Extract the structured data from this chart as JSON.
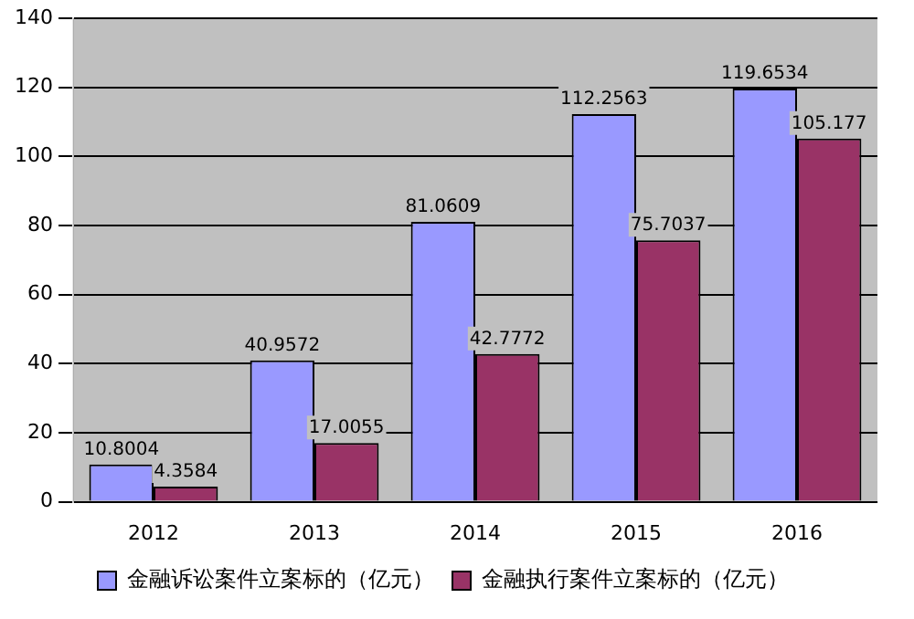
{
  "chart_data": {
    "type": "bar",
    "categories": [
      "2012",
      "2013",
      "2014",
      "2015",
      "2016"
    ],
    "series": [
      {
        "name": "金融诉讼案件立案标的（亿元）",
        "color": "#9999ff",
        "values": [
          10.8004,
          40.9572,
          81.0609,
          112.2563,
          119.6534
        ]
      },
      {
        "name": "金融执行案件立案标的（亿元）",
        "color": "#993366",
        "values": [
          4.3584,
          17.0055,
          42.7772,
          75.7037,
          105.177
        ]
      }
    ],
    "ylim": [
      0,
      140
    ],
    "yticks": [
      0,
      20,
      40,
      60,
      80,
      100,
      120,
      140
    ],
    "grid": "y",
    "legend": "bottom",
    "data_labels": true
  }
}
